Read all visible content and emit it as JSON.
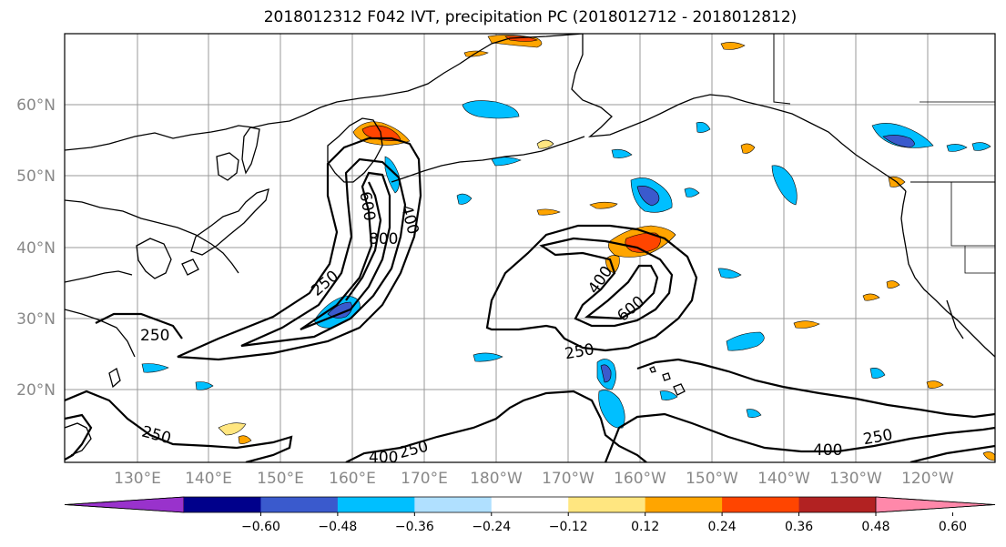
{
  "title": "2018012312 F042 IVT, precipitation PC (2018012712 - 2018012812)",
  "map": {
    "lon_labels": [
      "130°E",
      "140°E",
      "150°E",
      "160°E",
      "170°E",
      "180°W",
      "170°W",
      "160°W",
      "150°W",
      "140°W",
      "130°W",
      "120°W"
    ],
    "lat_labels": [
      "60°N",
      "50°N",
      "40°N",
      "30°N",
      "20°N"
    ],
    "ivt_contour_labels": [
      "250",
      "400",
      "600",
      "800",
      "250",
      "400",
      "600",
      "250",
      "250",
      "400",
      "250",
      "400",
      "250"
    ]
  },
  "colorbar": {
    "tick_labels": [
      "−0.60",
      "−0.48",
      "−0.36",
      "−0.24",
      "−0.12",
      "0.12",
      "0.24",
      "0.36",
      "0.48",
      "0.60"
    ],
    "colors": [
      "#9932cc",
      "#00008b",
      "#3a5acd",
      "#00bfff",
      "#b0e0ff",
      "#ffffff",
      "#ffe680",
      "#ffa500",
      "#ff4500",
      "#b22222",
      "#ff88aa"
    ]
  },
  "colors": {
    "grid": "#9a9a9a",
    "coast": "#000000",
    "contour": "#000000",
    "tick_label": "#888888"
  }
}
